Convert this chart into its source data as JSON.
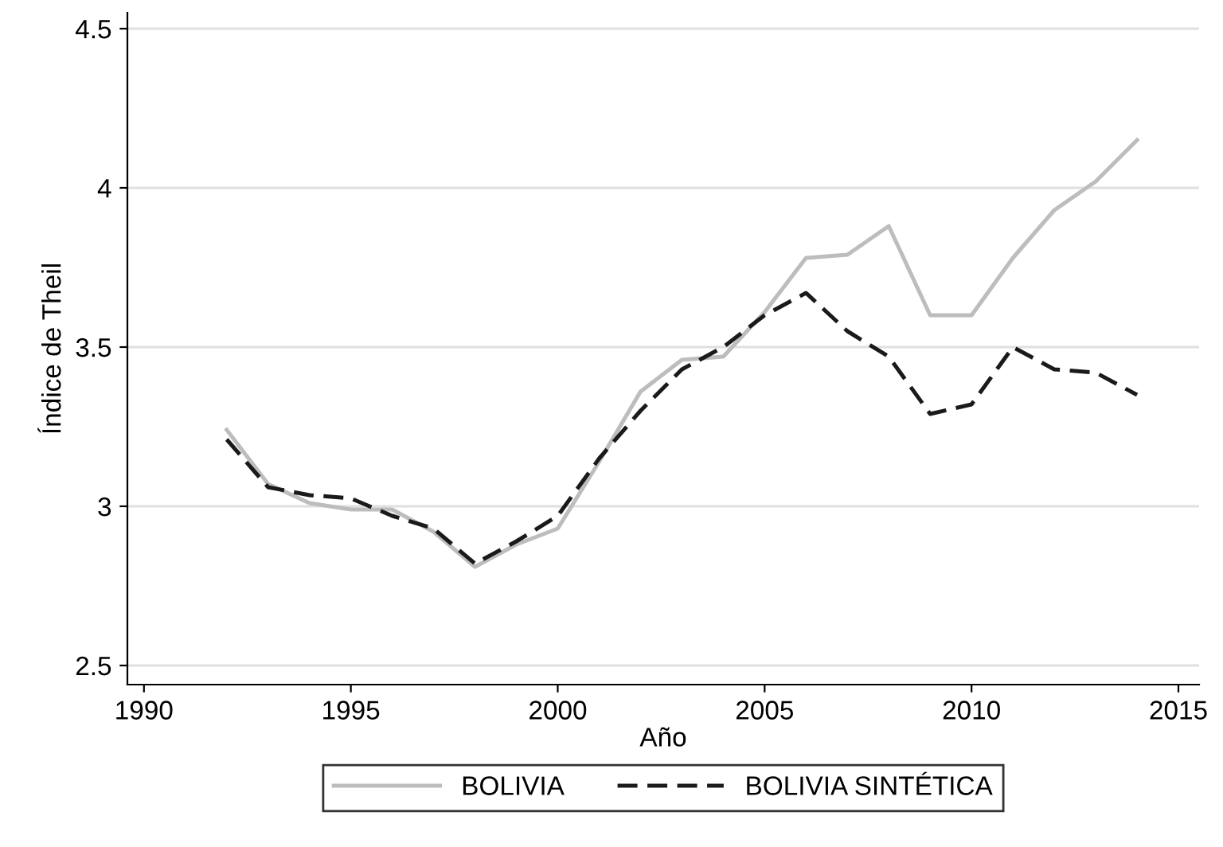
{
  "chart_data": {
    "type": "line",
    "xlabel": "Año",
    "ylabel": "Índice de Theil",
    "x": [
      1992,
      1993,
      1994,
      1995,
      1996,
      1997,
      1998,
      1999,
      2000,
      2001,
      2002,
      2003,
      2004,
      2005,
      2006,
      2007,
      2008,
      2009,
      2010,
      2011,
      2012,
      2013,
      2014
    ],
    "series": [
      {
        "name": "BOLIVIA",
        "color": "#bdbdbd",
        "line_style": "solid",
        "values": [
          3.24,
          3.07,
          3.01,
          2.99,
          2.99,
          2.92,
          2.81,
          2.88,
          2.93,
          3.14,
          3.36,
          3.46,
          3.47,
          3.61,
          3.78,
          3.79,
          3.88,
          3.6,
          3.6,
          3.78,
          3.93,
          4.02,
          4.15
        ]
      },
      {
        "name": "BOLIVIA SINTÉTICA",
        "color": "#1a1a1a",
        "line_style": "dashed",
        "values": [
          3.21,
          3.06,
          3.035,
          3.025,
          2.97,
          2.93,
          2.82,
          2.89,
          2.97,
          3.15,
          3.3,
          3.43,
          3.5,
          3.6,
          3.67,
          3.55,
          3.47,
          3.29,
          3.32,
          3.5,
          3.43,
          3.42,
          3.35
        ]
      }
    ],
    "xlim": [
      1989.6,
      2015.5
    ],
    "ylim": [
      2.44,
      4.55
    ],
    "xticks": [
      1990,
      1995,
      2000,
      2005,
      2010,
      2015
    ],
    "yticks": [
      2.5,
      3,
      3.5,
      4,
      4.5
    ],
    "grid": "y",
    "legend": "bottom",
    "marker": "none"
  }
}
